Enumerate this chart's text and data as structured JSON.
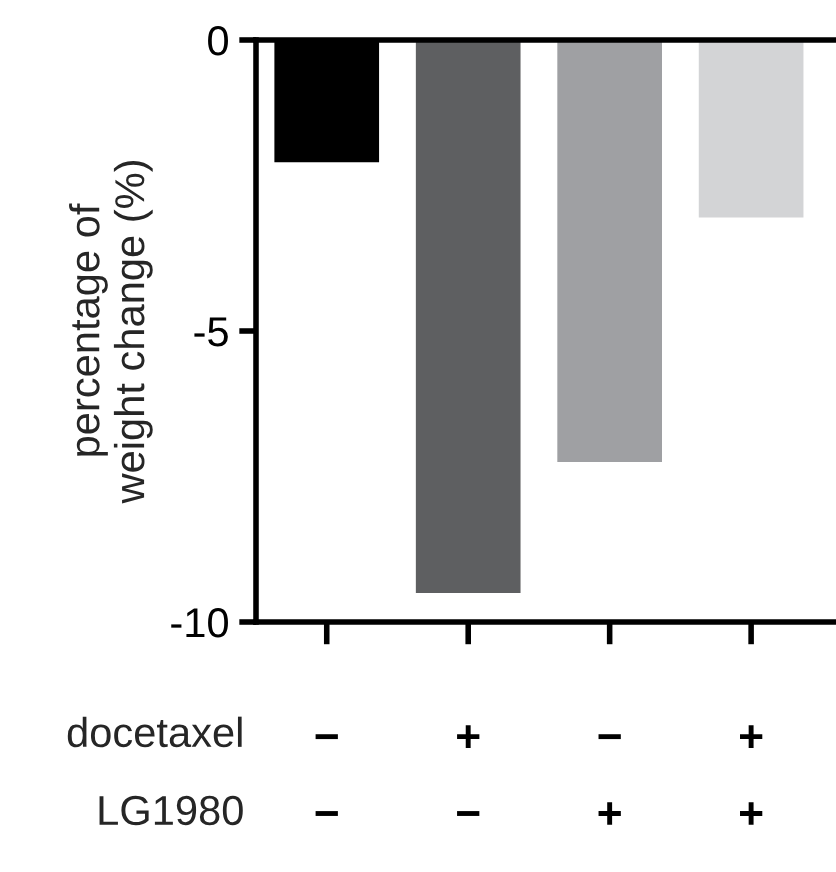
{
  "chart_data": {
    "type": "bar",
    "ylabel": "percentage of\nweight change (%)",
    "categories": [
      "−\n−",
      "+\n−",
      "−\n+",
      "+\n+"
    ],
    "values": [
      -2.1,
      -9.5,
      -7.25,
      -3.05
    ],
    "colors": [
      "#000000",
      "#5e5f61",
      "#9fa0a3",
      "#d3d4d6"
    ],
    "ylim": [
      -10,
      0
    ],
    "yticks": [
      -10,
      -5,
      0
    ],
    "grid": false,
    "annotations": [
      "docetaxel",
      "LG1980"
    ]
  }
}
